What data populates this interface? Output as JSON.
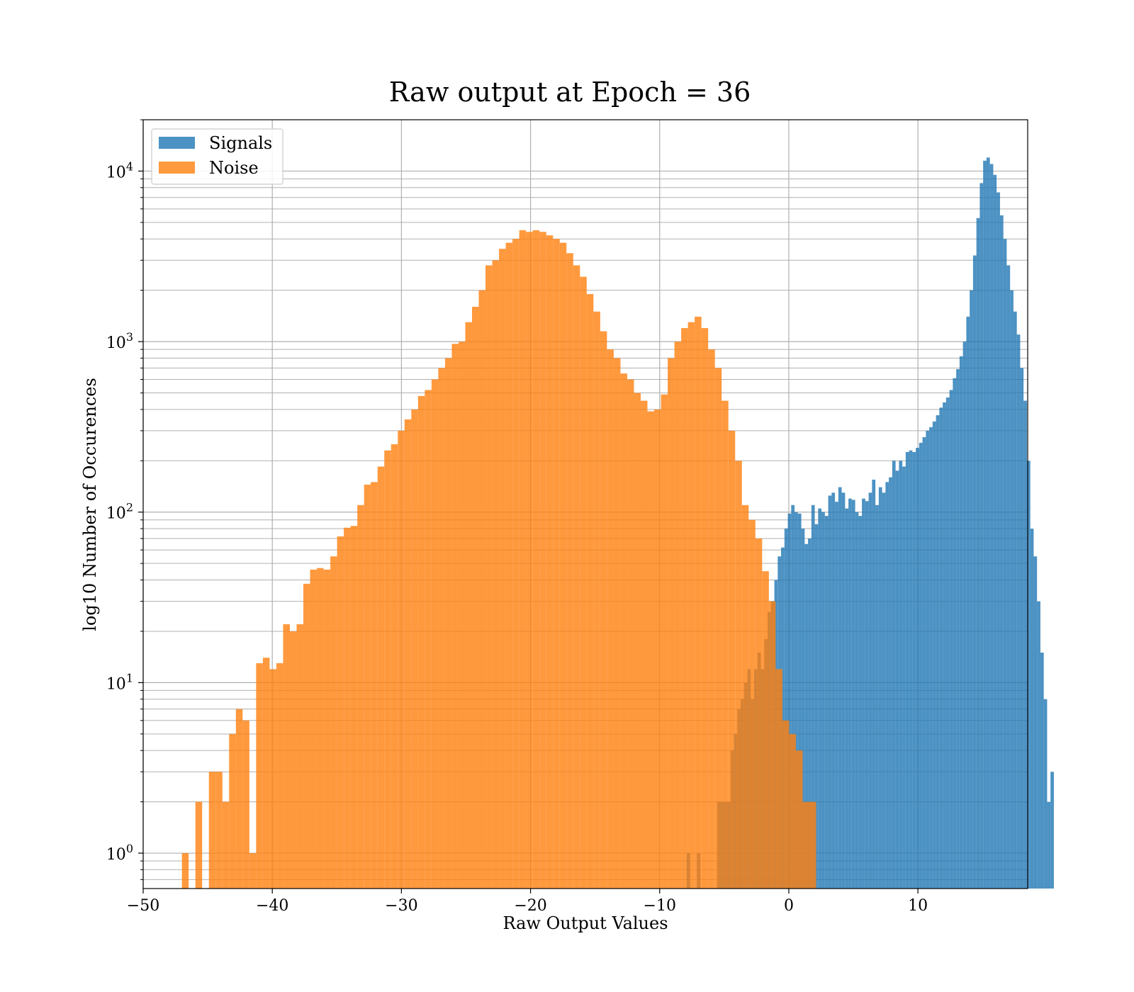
{
  "chart_data": {
    "type": "bar",
    "title": "Raw output at Epoch = 36",
    "xlabel": "Raw Output Values",
    "ylabel": "log10 Number of Occurences",
    "xlim": [
      -50,
      18.5
    ],
    "ylim": [
      0.62,
      20000
    ],
    "yscale": "log",
    "grid": "major and minor",
    "legend_position": "top-left",
    "x_ticks": [
      {
        "value": -50,
        "label": "−50"
      },
      {
        "value": -40,
        "label": "−40"
      },
      {
        "value": -30,
        "label": "−30"
      },
      {
        "value": -20,
        "label": "−20"
      },
      {
        "value": -10,
        "label": "−10"
      },
      {
        "value": 0,
        "label": "0"
      },
      {
        "value": 10,
        "label": "10"
      }
    ],
    "y_ticks": [
      {
        "value": 1,
        "base": "10",
        "exp": "0"
      },
      {
        "value": 10,
        "base": "10",
        "exp": "1"
      },
      {
        "value": 100,
        "base": "10",
        "exp": "2"
      },
      {
        "value": 1000,
        "base": "10",
        "exp": "3"
      },
      {
        "value": 10000,
        "base": "10",
        "exp": "4"
      }
    ],
    "series": [
      {
        "name": "Signals",
        "color": "#1f77b4",
        "opacity": 0.8,
        "bin_start": -7.9,
        "bin_width": 0.2608,
        "values": [
          1,
          0,
          0,
          1,
          0,
          0,
          0,
          0,
          0,
          2,
          2,
          2,
          2,
          4,
          5,
          7,
          8,
          10,
          12,
          8,
          12,
          15,
          12,
          18,
          26,
          30,
          40,
          55,
          62,
          80,
          98,
          110,
          100,
          98,
          80,
          65,
          70,
          110,
          85,
          105,
          100,
          95,
          125,
          130,
          115,
          140,
          130,
          105,
          120,
          118,
          100,
          95,
          120,
          116,
          130,
          155,
          110,
          140,
          130,
          150,
          160,
          200,
          175,
          200,
          185,
          225,
          230,
          225,
          238,
          255,
          275,
          300,
          315,
          340,
          370,
          410,
          440,
          470,
          520,
          610,
          690,
          820,
          1000,
          1400,
          2000,
          3200,
          5300,
          8500,
          11500,
          12000,
          11000,
          9500,
          7500,
          5500,
          4000,
          2800,
          2000,
          1500,
          1100,
          700,
          450,
          200,
          80,
          55,
          30,
          15,
          8,
          2,
          3
        ]
      },
      {
        "name": "Noise",
        "color": "#ff7f0e",
        "opacity": 0.8,
        "bin_start": -47.0,
        "bin_width": 0.5225,
        "values": [
          1,
          0,
          2,
          0,
          3,
          3,
          2,
          5,
          7,
          6,
          1,
          13,
          14,
          12,
          13,
          22,
          20,
          22,
          38,
          46,
          47,
          46,
          55,
          72,
          81,
          83,
          110,
          145,
          150,
          185,
          230,
          250,
          300,
          350,
          400,
          480,
          520,
          600,
          700,
          800,
          970,
          1000,
          1300,
          1600,
          2000,
          2800,
          3000,
          3500,
          3800,
          4000,
          4500,
          4400,
          4500,
          4400,
          4200,
          4000,
          3800,
          3300,
          2800,
          2400,
          1900,
          1500,
          1150,
          900,
          800,
          650,
          600,
          500,
          450,
          390,
          400,
          490,
          800,
          1000,
          1200,
          1300,
          1400,
          1200,
          900,
          700,
          450,
          300,
          200,
          110,
          90,
          70,
          45,
          30,
          12,
          6,
          5,
          4,
          2,
          2
        ]
      }
    ]
  }
}
